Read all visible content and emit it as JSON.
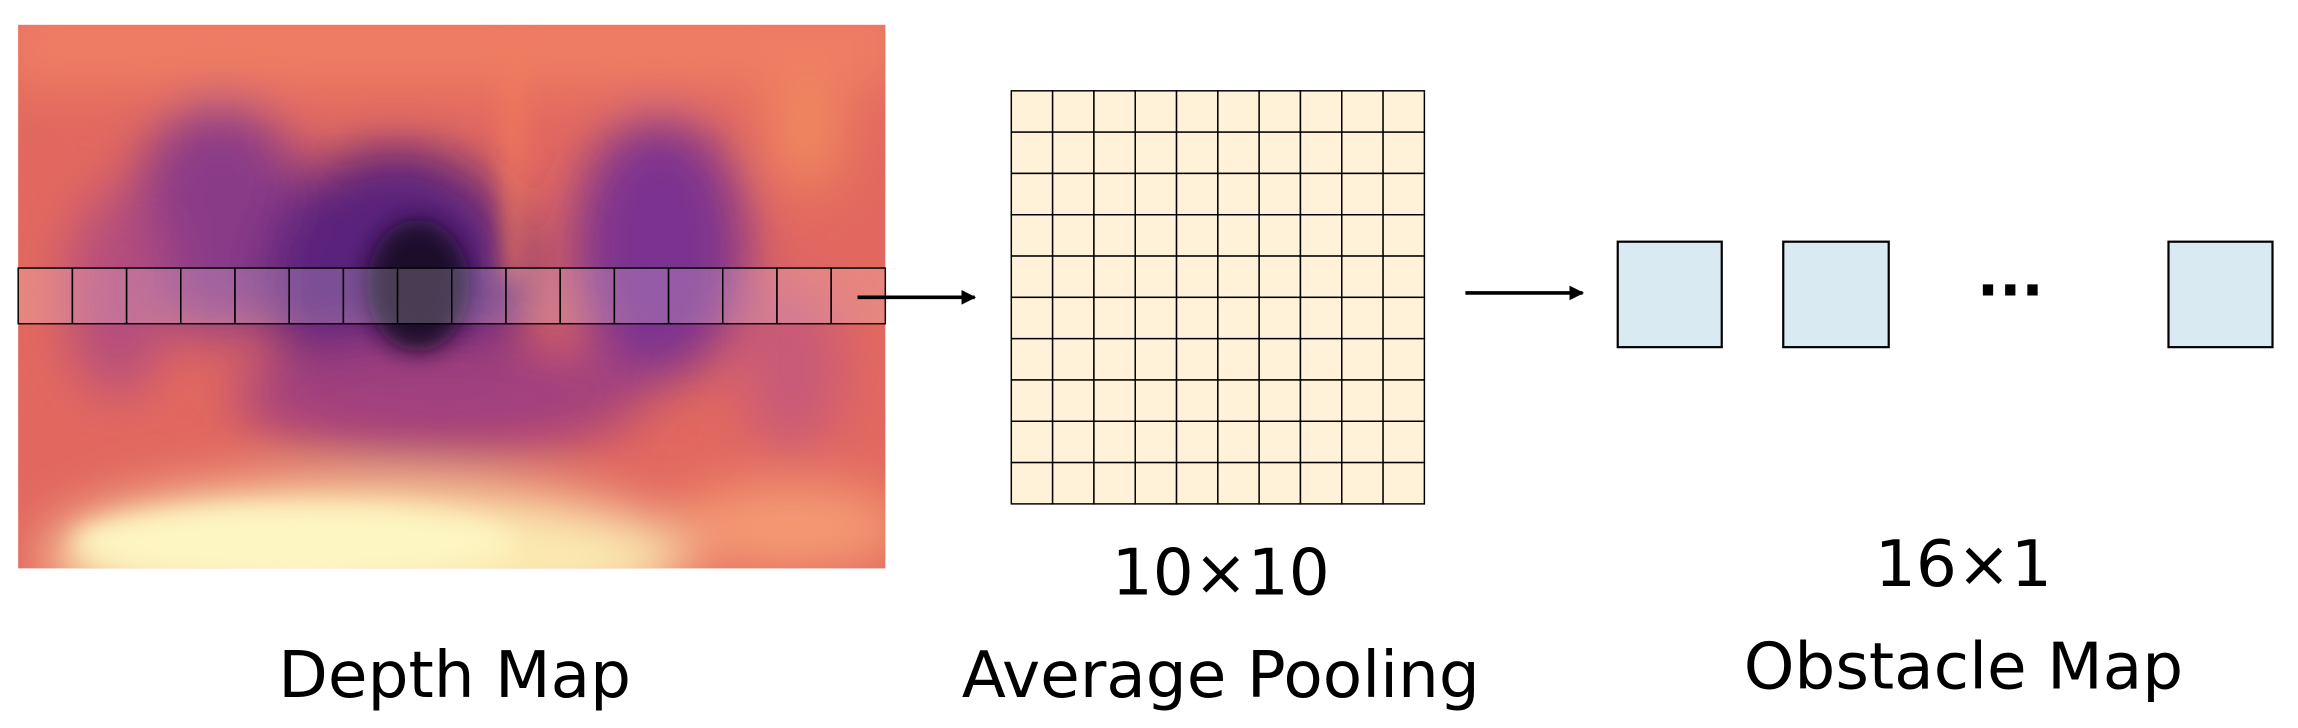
{
  "depth_map": {
    "label": "Depth Map"
  },
  "pooling": {
    "size_label": "10×10",
    "label": "Average Pooling"
  },
  "obstacle_map": {
    "size_label": "16×1",
    "label": "Obstacle Map",
    "ellipsis": "···"
  }
}
